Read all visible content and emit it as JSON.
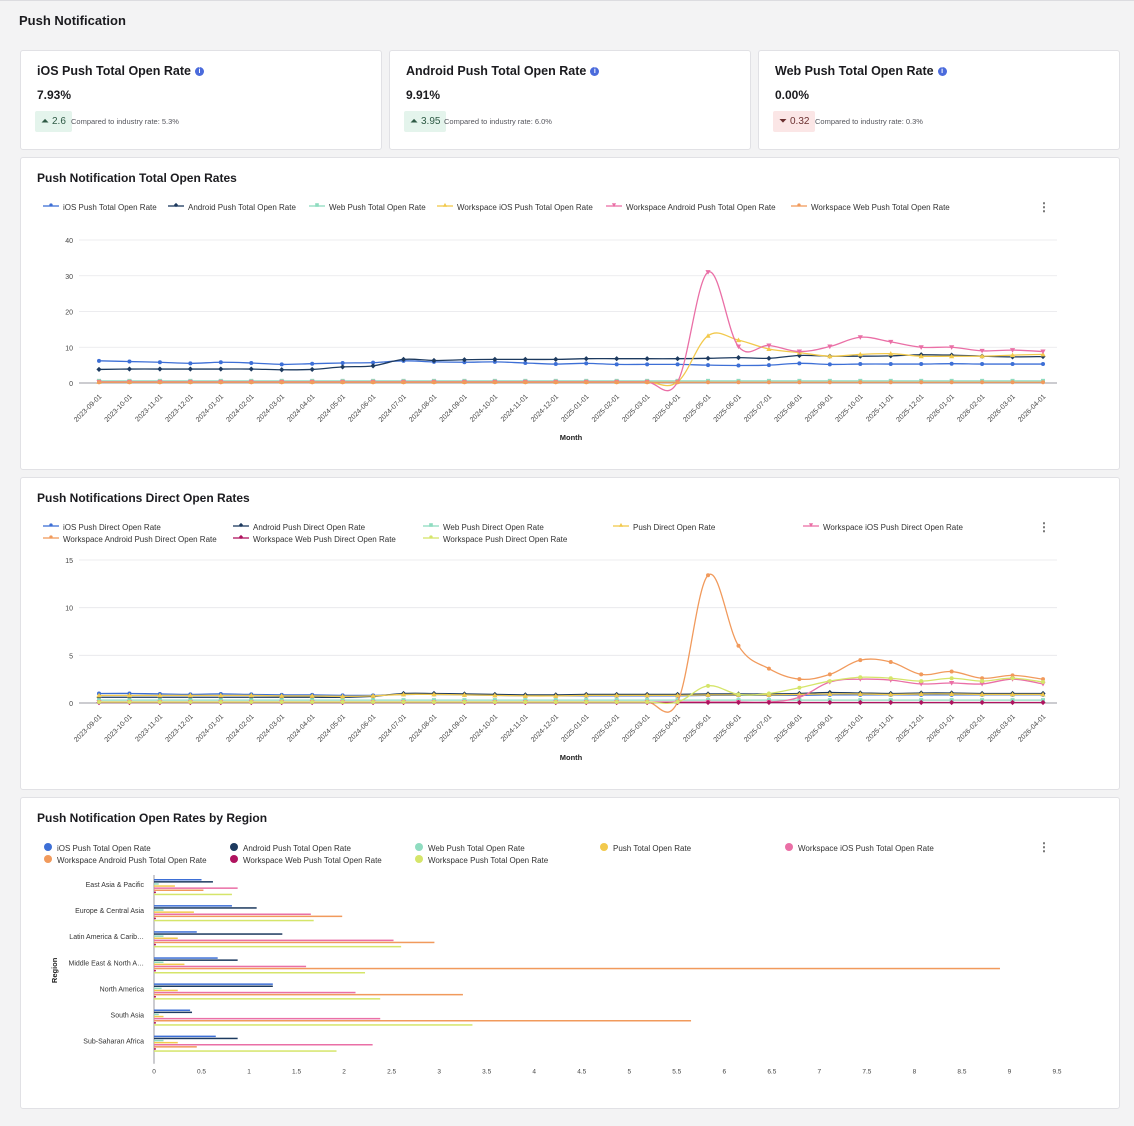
{
  "page": {
    "title": "Push Notification"
  },
  "kpis": [
    {
      "title": "iOS Push Total Open Rate",
      "value": "7.93%",
      "delta": "2.6",
      "direction": "up",
      "compare": "Compared to industry rate: 5.3%"
    },
    {
      "title": "Android Push Total Open Rate",
      "value": "9.91%",
      "delta": "3.95",
      "direction": "up",
      "compare": "Compared to industry rate: 6.0%"
    },
    {
      "title": "Web Push Total Open Rate",
      "value": "0.00%",
      "delta": "0.32",
      "direction": "down",
      "compare": "Compared to industry rate: 0.3%"
    }
  ],
  "chart_data": [
    {
      "type": "line",
      "title": "Push Notification Total Open Rates",
      "xlabel": "Month",
      "ylabel": "",
      "ylim": [
        0,
        40
      ],
      "yticks": [
        "0",
        "10",
        "20",
        "30",
        "40"
      ],
      "x": [
        "2023-09-01",
        "2023-10-01",
        "2023-11-01",
        "2023-12-01",
        "2024-01-01",
        "2024-02-01",
        "2024-03-01",
        "2024-04-01",
        "2024-05-01",
        "2024-06-01",
        "2024-07-01",
        "2024-08-01",
        "2024-09-01",
        "2024-10-01",
        "2024-11-01",
        "2024-12-01",
        "2025-01-01",
        "2025-02-01",
        "2025-03-01",
        "2025-04-01",
        "2025-05-01",
        "2025-06-01",
        "2025-07-01",
        "2025-08-01",
        "2025-09-01",
        "2025-10-01",
        "2025-11-01",
        "2025-12-01",
        "2026-01-01",
        "2026-02-01",
        "2026-03-01",
        "2026-04-01"
      ],
      "legend_position": "top",
      "series": [
        {
          "name": "iOS Push Total Open Rate",
          "color": "#3d6fd6",
          "marker": "circle",
          "values": [
            6.2,
            6.0,
            5.8,
            5.5,
            5.8,
            5.6,
            5.2,
            5.4,
            5.6,
            5.7,
            6.2,
            5.9,
            5.8,
            5.9,
            5.6,
            5.3,
            5.5,
            5.2,
            5.2,
            5.2,
            5.0,
            4.9,
            5.0,
            5.5,
            5.2,
            5.3,
            5.3,
            5.3,
            5.4,
            5.3,
            5.3,
            5.3
          ]
        },
        {
          "name": "Android Push Total Open Rate",
          "color": "#1d3a5f",
          "marker": "diamond",
          "values": [
            3.8,
            3.9,
            3.9,
            3.9,
            3.9,
            3.9,
            3.7,
            3.8,
            4.5,
            4.8,
            6.6,
            6.3,
            6.5,
            6.6,
            6.6,
            6.6,
            6.8,
            6.8,
            6.8,
            6.8,
            6.9,
            7.1,
            6.9,
            7.7,
            7.5,
            7.5,
            7.6,
            7.9,
            7.8,
            7.5,
            7.3,
            7.4
          ]
        },
        {
          "name": "Web Push Total Open Rate",
          "color": "#8fdcc0",
          "marker": "square",
          "values": [
            0.6,
            0.6,
            0.6,
            0.6,
            0.6,
            0.6,
            0.6,
            0.6,
            0.6,
            0.6,
            0.6,
            0.6,
            0.6,
            0.6,
            0.6,
            0.6,
            0.6,
            0.6,
            0.6,
            0.6,
            0.6,
            0.6,
            0.6,
            0.6,
            0.6,
            0.6,
            0.6,
            0.6,
            0.6,
            0.6,
            0.6,
            0.6
          ]
        },
        {
          "name": "Workspace iOS Push Total Open Rate",
          "color": "#f2c94c",
          "marker": "triangle-up",
          "values": [
            0.3,
            0.3,
            0.3,
            0.3,
            0.3,
            0.3,
            0.3,
            0.3,
            0.3,
            0.3,
            0.3,
            0.3,
            0.3,
            0.3,
            0.3,
            0.3,
            0.3,
            0.3,
            0.3,
            0.3,
            13.2,
            12.0,
            9.5,
            8.5,
            7.5,
            8.0,
            8.2,
            7.5,
            7.5,
            7.5,
            7.8,
            8.0
          ]
        },
        {
          "name": "Workspace Android Push Total Open Rate",
          "color": "#ea6fa6",
          "marker": "triangle-down",
          "values": [
            0.3,
            0.3,
            0.3,
            0.3,
            0.3,
            0.3,
            0.3,
            0.3,
            0.3,
            0.3,
            0.3,
            0.3,
            0.3,
            0.3,
            0.3,
            0.3,
            0.3,
            0.3,
            0.3,
            0.3,
            31.0,
            10.2,
            10.5,
            8.8,
            10.2,
            12.8,
            11.5,
            10.0,
            10.0,
            9.0,
            9.2,
            8.8
          ]
        },
        {
          "name": "Workspace Web Push Total Open Rate",
          "color": "#f19a5c",
          "marker": "circle",
          "values": [
            0.2,
            0.2,
            0.2,
            0.2,
            0.2,
            0.2,
            0.2,
            0.2,
            0.2,
            0.2,
            0.2,
            0.2,
            0.2,
            0.2,
            0.2,
            0.2,
            0.2,
            0.2,
            0.2,
            0.2,
            0.2,
            0.2,
            0.2,
            0.2,
            0.2,
            0.2,
            0.2,
            0.2,
            0.2,
            0.2,
            0.2,
            0.2
          ]
        }
      ]
    },
    {
      "type": "line",
      "title": "Push Notifications Direct Open Rates",
      "xlabel": "Month",
      "ylabel": "",
      "ylim": [
        0,
        15
      ],
      "yticks": [
        "0",
        "5",
        "10",
        "15"
      ],
      "x": [
        "2023-09-01",
        "2023-10-01",
        "2023-11-01",
        "2023-12-01",
        "2024-01-01",
        "2024-02-01",
        "2024-03-01",
        "2024-04-01",
        "2024-05-01",
        "2024-06-01",
        "2024-07-01",
        "2024-08-01",
        "2024-09-01",
        "2024-10-01",
        "2024-11-01",
        "2024-12-01",
        "2025-01-01",
        "2025-02-01",
        "2025-03-01",
        "2025-04-01",
        "2025-05-01",
        "2025-06-01",
        "2025-07-01",
        "2025-08-01",
        "2025-09-01",
        "2025-10-01",
        "2025-11-01",
        "2025-12-01",
        "2026-01-01",
        "2026-02-01",
        "2026-03-01",
        "2026-04-01"
      ],
      "legend_position": "top",
      "series": [
        {
          "name": "iOS Push Direct Open Rate",
          "color": "#3d6fd6",
          "marker": "circle",
          "values": [
            1.0,
            1.0,
            0.95,
            0.9,
            0.95,
            0.9,
            0.85,
            0.85,
            0.8,
            0.8,
            0.9,
            0.9,
            0.85,
            0.8,
            0.75,
            0.75,
            0.75,
            0.75,
            0.75,
            0.75,
            0.8,
            0.8,
            0.8,
            0.8,
            0.85,
            0.85,
            0.85,
            0.85,
            0.85,
            0.85,
            0.85,
            0.85
          ]
        },
        {
          "name": "Android Push Direct Open Rate",
          "color": "#1d3a5f",
          "marker": "diamond",
          "values": [
            0.6,
            0.6,
            0.6,
            0.6,
            0.6,
            0.6,
            0.6,
            0.6,
            0.6,
            0.7,
            1.0,
            1.0,
            0.95,
            0.9,
            0.85,
            0.85,
            0.9,
            0.9,
            0.9,
            0.9,
            0.95,
            0.95,
            0.95,
            1.0,
            1.1,
            1.05,
            1.0,
            1.05,
            1.05,
            1.0,
            1.0,
            1.0
          ]
        },
        {
          "name": "Web Push Direct Open Rate",
          "color": "#8fdcc0",
          "marker": "square",
          "values": [
            0.3,
            0.3,
            0.3,
            0.3,
            0.3,
            0.3,
            0.3,
            0.3,
            0.3,
            0.3,
            0.3,
            0.3,
            0.3,
            0.3,
            0.3,
            0.3,
            0.3,
            0.3,
            0.3,
            0.3,
            0.3,
            0.3,
            0.3,
            0.3,
            0.3,
            0.3,
            0.3,
            0.3,
            0.3,
            0.3,
            0.3,
            0.3
          ]
        },
        {
          "name": "Push Direct Open Rate",
          "color": "#f2c94c",
          "marker": "triangle-up",
          "values": [
            0.8,
            0.8,
            0.8,
            0.8,
            0.8,
            0.8,
            0.75,
            0.75,
            0.7,
            0.75,
            0.9,
            0.9,
            0.85,
            0.8,
            0.75,
            0.75,
            0.8,
            0.8,
            0.8,
            0.8,
            0.85,
            0.85,
            0.85,
            0.9,
            0.95,
            0.95,
            0.9,
            0.95,
            0.95,
            0.9,
            0.9,
            0.9
          ]
        },
        {
          "name": "Workspace iOS Push Direct Open Rate",
          "color": "#ea6fa6",
          "marker": "triangle-down",
          "values": [
            0.1,
            0.1,
            0.1,
            0.1,
            0.1,
            0.1,
            0.1,
            0.1,
            0.1,
            0.1,
            0.1,
            0.1,
            0.1,
            0.1,
            0.1,
            0.1,
            0.1,
            0.1,
            0.1,
            0.1,
            0.1,
            0.1,
            0.1,
            0.6,
            2.2,
            2.5,
            2.4,
            2.0,
            2.1,
            2.0,
            2.5,
            2.0
          ]
        },
        {
          "name": "Workspace Android Push Direct Open Rate",
          "color": "#f19a5c",
          "marker": "circle",
          "values": [
            0.1,
            0.1,
            0.1,
            0.1,
            0.1,
            0.1,
            0.1,
            0.1,
            0.1,
            0.1,
            0.1,
            0.1,
            0.1,
            0.1,
            0.1,
            0.1,
            0.1,
            0.1,
            0.1,
            0.1,
            13.4,
            6.0,
            3.6,
            2.5,
            3.0,
            4.5,
            4.3,
            3.0,
            3.3,
            2.6,
            2.9,
            2.5
          ]
        },
        {
          "name": "Workspace Web Push Direct Open Rate",
          "color": "#b0135f",
          "marker": "diamond",
          "values": [
            0.05,
            0.05,
            0.05,
            0.05,
            0.05,
            0.05,
            0.05,
            0.05,
            0.05,
            0.05,
            0.05,
            0.05,
            0.05,
            0.05,
            0.05,
            0.05,
            0.05,
            0.05,
            0.05,
            0.05,
            0.05,
            0.05,
            0.05,
            0.05,
            0.05,
            0.05,
            0.05,
            0.05,
            0.05,
            0.05,
            0.05,
            0.05
          ]
        },
        {
          "name": "Workspace Push Direct Open Rate",
          "color": "#d5e56a",
          "marker": "circle",
          "values": [
            0.1,
            0.1,
            0.1,
            0.1,
            0.1,
            0.1,
            0.1,
            0.1,
            0.1,
            0.1,
            0.1,
            0.1,
            0.1,
            0.1,
            0.1,
            0.1,
            0.1,
            0.1,
            0.1,
            0.1,
            1.8,
            0.9,
            1.0,
            1.6,
            2.3,
            2.7,
            2.6,
            2.3,
            2.6,
            2.3,
            2.6,
            2.2
          ]
        }
      ]
    },
    {
      "type": "bar",
      "orientation": "horizontal",
      "title": "Push Notification Open Rates by Region",
      "xlabel": "",
      "ylabel": "Region",
      "xlim": [
        0,
        9.5
      ],
      "xticks": [
        "0",
        "0.5",
        "1",
        "1.5",
        "2",
        "2.5",
        "3",
        "3.5",
        "4",
        "4.5",
        "5",
        "5.5",
        "6",
        "6.5",
        "7",
        "7.5",
        "8",
        "8.5",
        "9",
        "9.5"
      ],
      "legend_position": "top",
      "categories": [
        "East Asia & Pacific",
        "Europe & Central Asia",
        "Latin America & Carib…",
        "Middle East & North A…",
        "North America",
        "South Asia",
        "Sub-Saharan Africa"
      ],
      "series": [
        {
          "name": "iOS Push Total Open Rate",
          "color": "#3d6fd6",
          "values": [
            0.5,
            0.82,
            0.45,
            0.67,
            1.25,
            0.38,
            0.65
          ]
        },
        {
          "name": "Android Push Total Open Rate",
          "color": "#1d3a5f",
          "values": [
            0.62,
            1.08,
            1.35,
            0.88,
            1.25,
            0.4,
            0.88
          ]
        },
        {
          "name": "Web Push Total Open Rate",
          "color": "#8fdcc0",
          "values": [
            0.05,
            0.1,
            0.1,
            0.1,
            0.08,
            0.05,
            0.1
          ]
        },
        {
          "name": "Push Total Open Rate",
          "color": "#f2c94c",
          "values": [
            0.22,
            0.42,
            0.25,
            0.32,
            0.25,
            0.1,
            0.25
          ]
        },
        {
          "name": "Workspace iOS Push Total Open Rate",
          "color": "#ea6fa6",
          "values": [
            0.88,
            1.65,
            2.52,
            1.6,
            2.12,
            2.38,
            2.3
          ]
        },
        {
          "name": "Workspace Android Push Total Open Rate",
          "color": "#f19a5c",
          "values": [
            0.52,
            1.98,
            2.95,
            8.9,
            3.25,
            5.65,
            0.45
          ]
        },
        {
          "name": "Workspace Web Push Total Open Rate",
          "color": "#b0135f",
          "values": [
            0.02,
            0.02,
            0.02,
            0.02,
            0.02,
            0.02,
            0.02
          ]
        },
        {
          "name": "Workspace Push Total Open Rate",
          "color": "#d5e56a",
          "values": [
            0.82,
            1.68,
            2.6,
            2.22,
            2.38,
            3.35,
            1.92
          ]
        }
      ]
    }
  ]
}
